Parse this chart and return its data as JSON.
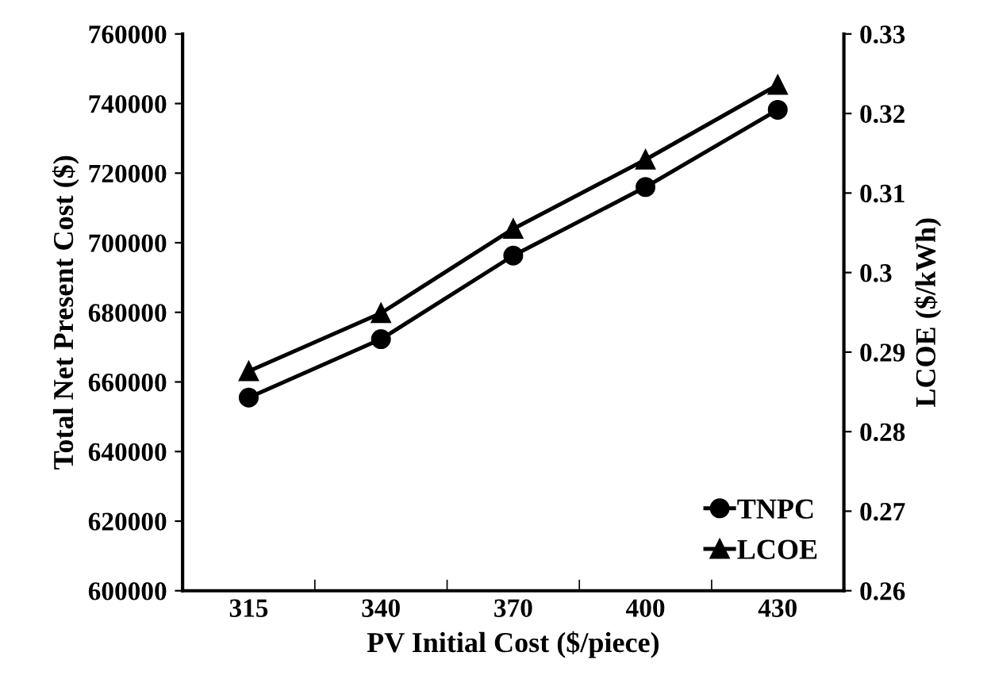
{
  "chart_data": {
    "type": "line",
    "xlabel": "PV Initial Cost ($/piece)",
    "ylabel": "Total Net Present Cost ($)",
    "y2label": "LCOE ($/kWh)",
    "categories": [
      "315",
      "340",
      "370",
      "400",
      "430"
    ],
    "series": [
      {
        "name": "TNPC",
        "color": "#000000",
        "values": [
          655500,
          672300,
          696300,
          716000,
          738200
        ],
        "marker": "circle"
      },
      {
        "name": "LCOE",
        "color": "#000000",
        "values": [
          0.2876,
          0.2949,
          0.3055,
          0.3142,
          0.3236
        ],
        "marker": "triangle",
        "axis": "y2"
      }
    ],
    "ylim": [
      600000,
      760000
    ],
    "yticks": [
      600000,
      620000,
      640000,
      660000,
      680000,
      700000,
      720000,
      740000,
      760000
    ],
    "y2lim": [
      0.26,
      0.33
    ],
    "y2ticks": [
      0.26,
      0.27,
      0.28,
      0.29,
      0.3,
      0.31,
      0.32,
      0.33
    ],
    "legend": "bottom right",
    "grid": false,
    "line_style": "solid"
  }
}
